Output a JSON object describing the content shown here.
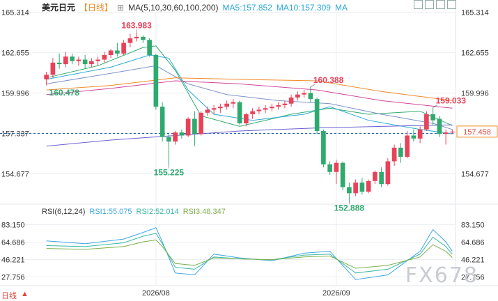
{
  "header": {
    "symbol": "美元日元",
    "period": "【日线】",
    "ma_label": "MA(5,10,30,60,100,200)",
    "ma5": "MA5:157.852",
    "ma10": "MA10:157.309",
    "ma_short": "MA"
  },
  "rsi_header": {
    "label": "RSI(6,12,24)",
    "rsi1": "RSI1:55.075",
    "rsi2": "RSI2:52.014",
    "rsi3": "RSI3:48.347"
  },
  "footer": {
    "period": "日线"
  },
  "watermark": "FX678",
  "colors": {
    "up": "#e8425a",
    "down": "#2eaa6e",
    "ma5": "#2eaa6e",
    "ma10": "#2aa9d6",
    "ma30": "#7f93c9",
    "ma60": "#d0459c",
    "ma100": "#f08a28",
    "ma200": "#6a5fd1",
    "rsi1": "#3ea7e3",
    "rsi2": "#39b8a3",
    "rsi3": "#7ab04a"
  },
  "chart_data": [
    {
      "type": "candlestick",
      "title": "美元日元 日线",
      "ylim": [
        153.0,
        165.3
      ],
      "y_ticks": [
        "165.314",
        "162.655",
        "159.996",
        "157.337",
        "154.677"
      ],
      "x_ticks": [
        "2026/08",
        "2026/09"
      ],
      "last_price": "157.458",
      "reference_level": 157.337,
      "annotations": [
        {
          "label": "163.983",
          "value": 163.983,
          "kind": "high"
        },
        {
          "label": "160.478",
          "value": 160.478,
          "kind": "low"
        },
        {
          "label": "155.225",
          "value": 155.225,
          "kind": "low"
        },
        {
          "label": "160.388",
          "value": 160.388,
          "kind": "high"
        },
        {
          "label": "152.888",
          "value": 152.888,
          "kind": "low"
        },
        {
          "label": "159.033",
          "value": 159.033,
          "kind": "high"
        }
      ],
      "candles": [
        [
          160.9,
          161.4,
          160.5,
          161.2
        ],
        [
          161.2,
          162.3,
          161.0,
          162.0
        ],
        [
          162.0,
          162.6,
          161.6,
          161.9
        ],
        [
          161.9,
          162.7,
          161.7,
          162.4
        ],
        [
          162.4,
          162.6,
          161.9,
          162.1
        ],
        [
          162.1,
          162.4,
          161.8,
          162.2
        ],
        [
          162.2,
          162.5,
          161.6,
          161.9
        ],
        [
          161.9,
          162.3,
          161.7,
          162.1
        ],
        [
          162.1,
          162.4,
          161.8,
          162.2
        ],
        [
          162.2,
          162.7,
          162.0,
          162.5
        ],
        [
          162.5,
          162.9,
          162.3,
          162.8
        ],
        [
          162.8,
          163.3,
          162.4,
          162.6
        ],
        [
          162.6,
          163.5,
          162.5,
          163.3
        ],
        [
          163.3,
          163.9,
          163.0,
          163.6
        ],
        [
          163.6,
          163.98,
          163.4,
          163.7
        ],
        [
          163.7,
          163.8,
          163.3,
          163.5
        ],
        [
          163.5,
          163.6,
          162.4,
          162.5
        ],
        [
          162.5,
          162.6,
          158.9,
          159.1
        ],
        [
          159.1,
          159.4,
          156.8,
          157.1
        ],
        [
          157.1,
          157.3,
          155.225,
          156.8
        ],
        [
          156.8,
          157.5,
          156.6,
          157.4
        ],
        [
          157.4,
          157.6,
          157.0,
          157.2
        ],
        [
          157.2,
          158.4,
          157.1,
          158.3
        ],
        [
          158.3,
          158.8,
          156.5,
          157.3
        ],
        [
          157.3,
          158.8,
          157.2,
          158.7
        ],
        [
          158.7,
          159.1,
          158.5,
          158.9
        ],
        [
          158.9,
          159.2,
          158.6,
          159.0
        ],
        [
          159.0,
          159.3,
          158.7,
          159.1
        ],
        [
          159.1,
          159.5,
          158.9,
          159.3
        ],
        [
          159.3,
          159.6,
          159.0,
          159.4
        ],
        [
          159.4,
          159.5,
          157.9,
          158.0
        ],
        [
          158.0,
          158.7,
          157.8,
          158.6
        ],
        [
          158.6,
          159.0,
          158.3,
          158.8
        ],
        [
          158.8,
          159.1,
          158.6,
          158.9
        ],
        [
          158.9,
          159.2,
          158.7,
          159.0
        ],
        [
          159.0,
          159.3,
          158.8,
          159.1
        ],
        [
          159.1,
          159.4,
          158.9,
          159.2
        ],
        [
          159.2,
          159.5,
          159.0,
          159.3
        ],
        [
          159.3,
          159.9,
          159.1,
          159.7
        ],
        [
          159.7,
          160.1,
          159.5,
          159.9
        ],
        [
          159.9,
          160.2,
          159.7,
          160.0
        ],
        [
          160.0,
          160.388,
          159.4,
          159.6
        ],
        [
          159.6,
          159.7,
          157.3,
          157.5
        ],
        [
          157.5,
          157.6,
          155.1,
          155.3
        ],
        [
          155.3,
          155.5,
          154.6,
          154.8
        ],
        [
          154.8,
          155.6,
          154.0,
          155.4
        ],
        [
          155.4,
          155.5,
          153.6,
          153.8
        ],
        [
          153.8,
          154.1,
          152.888,
          153.4
        ],
        [
          153.4,
          154.3,
          153.2,
          154.1
        ],
        [
          154.1,
          154.4,
          153.3,
          153.5
        ],
        [
          153.5,
          154.3,
          153.4,
          154.2
        ],
        [
          154.2,
          154.9,
          154.0,
          154.8
        ],
        [
          154.8,
          155.1,
          153.8,
          154.0
        ],
        [
          154.0,
          155.7,
          153.9,
          155.5
        ],
        [
          155.5,
          156.6,
          155.2,
          156.4
        ],
        [
          156.4,
          156.7,
          155.4,
          155.8
        ],
        [
          155.8,
          157.5,
          155.7,
          157.2
        ],
        [
          157.2,
          157.6,
          156.8,
          157.0
        ],
        [
          157.0,
          157.8,
          156.7,
          157.6
        ],
        [
          157.6,
          158.8,
          157.5,
          158.6
        ],
        [
          158.6,
          159.033,
          157.9,
          158.2
        ],
        [
          158.3,
          158.5,
          157.1,
          157.3
        ],
        [
          157.3,
          157.6,
          156.6,
          157.4
        ],
        [
          157.4,
          157.6,
          157.3,
          157.458
        ]
      ],
      "series": [
        {
          "name": "MA5",
          "values": [
            [
              0,
              161.0
            ],
            [
              8,
              161.8
            ],
            [
              15,
              163.0
            ],
            [
              17,
              163.1
            ],
            [
              20,
              161.5
            ],
            [
              24,
              158.5
            ],
            [
              30,
              157.8
            ],
            [
              38,
              158.6
            ],
            [
              44,
              159.0
            ],
            [
              50,
              158.6
            ],
            [
              58,
              158.8
            ],
            [
              63,
              157.852
            ]
          ]
        },
        {
          "name": "MA10",
          "values": [
            [
              0,
              160.9
            ],
            [
              10,
              161.7
            ],
            [
              16,
              162.5
            ],
            [
              19,
              162.3
            ],
            [
              22,
              160.2
            ],
            [
              26,
              158.6
            ],
            [
              32,
              158.2
            ],
            [
              40,
              158.6
            ],
            [
              44,
              159.1
            ],
            [
              50,
              158.2
            ],
            [
              58,
              157.6
            ],
            [
              63,
              157.309
            ]
          ]
        },
        {
          "name": "MA30",
          "values": [
            [
              0,
              160.6
            ],
            [
              10,
              161.3
            ],
            [
              17,
              161.8
            ],
            [
              22,
              160.6
            ],
            [
              28,
              159.9
            ],
            [
              36,
              159.5
            ],
            [
              44,
              159.3
            ],
            [
              52,
              158.6
            ],
            [
              60,
              158.0
            ],
            [
              63,
              157.6
            ]
          ]
        },
        {
          "name": "MA60",
          "values": [
            [
              0,
              159.9
            ],
            [
              10,
              160.3
            ],
            [
              20,
              160.8
            ],
            [
              30,
              160.6
            ],
            [
              42,
              160.2
            ],
            [
              52,
              159.5
            ],
            [
              63,
              159.0
            ]
          ]
        },
        {
          "name": "MA100",
          "values": [
            [
              0,
              160.2
            ],
            [
              10,
              160.5
            ],
            [
              20,
              161.0
            ],
            [
              30,
              160.9
            ],
            [
              42,
              160.8
            ],
            [
              52,
              160.1
            ],
            [
              63,
              159.5
            ]
          ]
        },
        {
          "name": "MA200",
          "values": [
            [
              0,
              156.5
            ],
            [
              10,
              156.9
            ],
            [
              20,
              157.2
            ],
            [
              30,
              157.5
            ],
            [
              42,
              157.7
            ],
            [
              52,
              157.8
            ],
            [
              63,
              157.9
            ]
          ]
        }
      ]
    },
    {
      "type": "line",
      "title": "RSI(6,12,24)",
      "ylim": [
        20,
        88
      ],
      "y_ticks": [
        "83.150",
        "64.686",
        "46.221",
        "27.756"
      ],
      "series": [
        {
          "name": "RSI1",
          "values": [
            [
              0,
              66
            ],
            [
              6,
              63
            ],
            [
              12,
              68
            ],
            [
              15,
              75
            ],
            [
              17,
              80
            ],
            [
              18,
              65
            ],
            [
              20,
              32
            ],
            [
              23,
              30
            ],
            [
              26,
              52
            ],
            [
              30,
              48
            ],
            [
              35,
              45
            ],
            [
              40,
              53
            ],
            [
              44,
              55
            ],
            [
              48,
              25
            ],
            [
              53,
              30
            ],
            [
              58,
              55
            ],
            [
              60,
              78
            ],
            [
              62,
              65
            ],
            [
              63,
              55.075
            ]
          ]
        },
        {
          "name": "RSI2",
          "values": [
            [
              0,
              61
            ],
            [
              6,
              60
            ],
            [
              12,
              64
            ],
            [
              15,
              71
            ],
            [
              17,
              74
            ],
            [
              18,
              63
            ],
            [
              20,
              38
            ],
            [
              23,
              36
            ],
            [
              26,
              49
            ],
            [
              30,
              47
            ],
            [
              35,
              46
            ],
            [
              40,
              51
            ],
            [
              44,
              52
            ],
            [
              48,
              32
            ],
            [
              53,
              36
            ],
            [
              58,
              52
            ],
            [
              60,
              70
            ],
            [
              62,
              60
            ],
            [
              63,
              52.014
            ]
          ]
        },
        {
          "name": "RSI3",
          "values": [
            [
              0,
              58
            ],
            [
              6,
              57
            ],
            [
              12,
              60
            ],
            [
              15,
              65
            ],
            [
              17,
              67
            ],
            [
              18,
              60
            ],
            [
              20,
              42
            ],
            [
              23,
              40
            ],
            [
              26,
              48
            ],
            [
              30,
              47
            ],
            [
              35,
              46
            ],
            [
              40,
              49
            ],
            [
              44,
              50
            ],
            [
              48,
              37
            ],
            [
              53,
              40
            ],
            [
              58,
              49
            ],
            [
              60,
              62
            ],
            [
              62,
              55
            ],
            [
              63,
              48.347
            ]
          ]
        }
      ]
    }
  ]
}
